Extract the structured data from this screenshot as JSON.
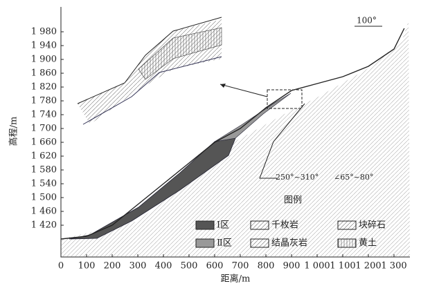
{
  "chart_data": {
    "type": "profile",
    "y_label": "高程/m",
    "x_label": "距离/m",
    "x": [
      0,
      100,
      200,
      300,
      400,
      500,
      600,
      700,
      800,
      900,
      1000,
      1100,
      1200,
      1300,
      1340
    ],
    "values": [
      1380,
      1388,
      1420,
      1480,
      1540,
      1600,
      1660,
      1700,
      1760,
      1810,
      1830,
      1850,
      1880,
      1930,
      1990
    ],
    "color": "#222222",
    "xlim": [
      0,
      1350
    ],
    "ylim": [
      1328,
      2042
    ],
    "xticks": [
      0,
      100,
      200,
      300,
      400,
      500,
      600,
      700,
      800,
      900,
      {
        "value": 1000,
        "label": "1 000"
      },
      {
        "value": 1100,
        "label": "1 100"
      },
      {
        "value": 1200,
        "label": "1 200"
      },
      {
        "value": 1300,
        "label": "1 300"
      }
    ],
    "yticks": [
      {
        "value": 1420,
        "label": "1 420"
      },
      {
        "value": 1460,
        "label": "1 460"
      },
      {
        "value": 1500,
        "label": "1 500"
      },
      {
        "value": 1540,
        "label": "1 540"
      },
      {
        "value": 1580,
        "label": "1 580"
      },
      {
        "value": 1620,
        "label": "1 620"
      },
      {
        "value": 1660,
        "label": "1 660"
      },
      {
        "value": 1700,
        "label": "1 700"
      },
      {
        "value": 1740,
        "label": "1 740"
      },
      {
        "value": 1780,
        "label": "1 780"
      },
      {
        "value": 1820,
        "label": "1 820"
      },
      {
        "value": 1860,
        "label": "1 860"
      },
      {
        "value": 1900,
        "label": "1 900"
      },
      {
        "value": 1940,
        "label": "1 940"
      },
      {
        "value": 1980,
        "label": "1 980"
      }
    ],
    "grid": false,
    "annotations": {
      "strike": "250°~310°",
      "dip": "∠65°~80°",
      "direction": "100°"
    },
    "legend": {
      "title": "图例",
      "items": [
        "Ⅰ区",
        "千枚岩",
        "块碎石",
        "Ⅱ区",
        "结晶灰岩",
        "黄土"
      ]
    }
  }
}
